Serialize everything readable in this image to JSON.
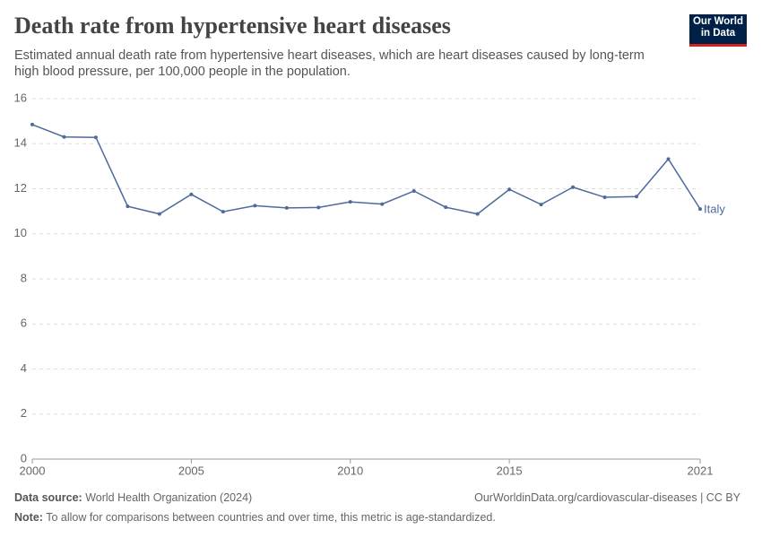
{
  "header": {
    "logo": [
      "Our World",
      "in Data"
    ]
  },
  "chart_data": {
    "type": "line",
    "title": "Death rate from hypertensive heart diseases",
    "subtitle": "Estimated annual death rate from hypertensive heart diseases, which are heart diseases caused by long-term high blood pressure, per 100,000 people in the population.",
    "x": [
      2000,
      2001,
      2002,
      2003,
      2004,
      2005,
      2006,
      2007,
      2008,
      2009,
      2010,
      2011,
      2012,
      2013,
      2014,
      2015,
      2016,
      2017,
      2018,
      2019,
      2020,
      2021
    ],
    "series": [
      {
        "name": "Italy",
        "color": "#4c6a9c",
        "values": [
          14.85,
          14.3,
          14.28,
          11.22,
          10.88,
          11.75,
          10.98,
          11.25,
          11.15,
          11.17,
          11.42,
          11.32,
          11.9,
          11.18,
          10.88,
          11.97,
          11.3,
          12.07,
          11.62,
          11.65,
          13.32,
          11.1
        ]
      }
    ],
    "xlim": [
      2000,
      2021
    ],
    "xticks": [
      2000,
      2005,
      2010,
      2015,
      2021
    ],
    "ylim": [
      0,
      16
    ],
    "yticks": [
      0,
      2,
      4,
      6,
      8,
      10,
      12,
      14,
      16
    ],
    "grid": true
  },
  "footer": {
    "source_label": "Data source:",
    "source": "World Health Organization (2024)",
    "url": "OurWorldinData.org/cardiovascular-diseases | CC BY",
    "note_label": "Note:",
    "note": "To allow for comparisons between countries and over time, this metric is age-standardized."
  }
}
